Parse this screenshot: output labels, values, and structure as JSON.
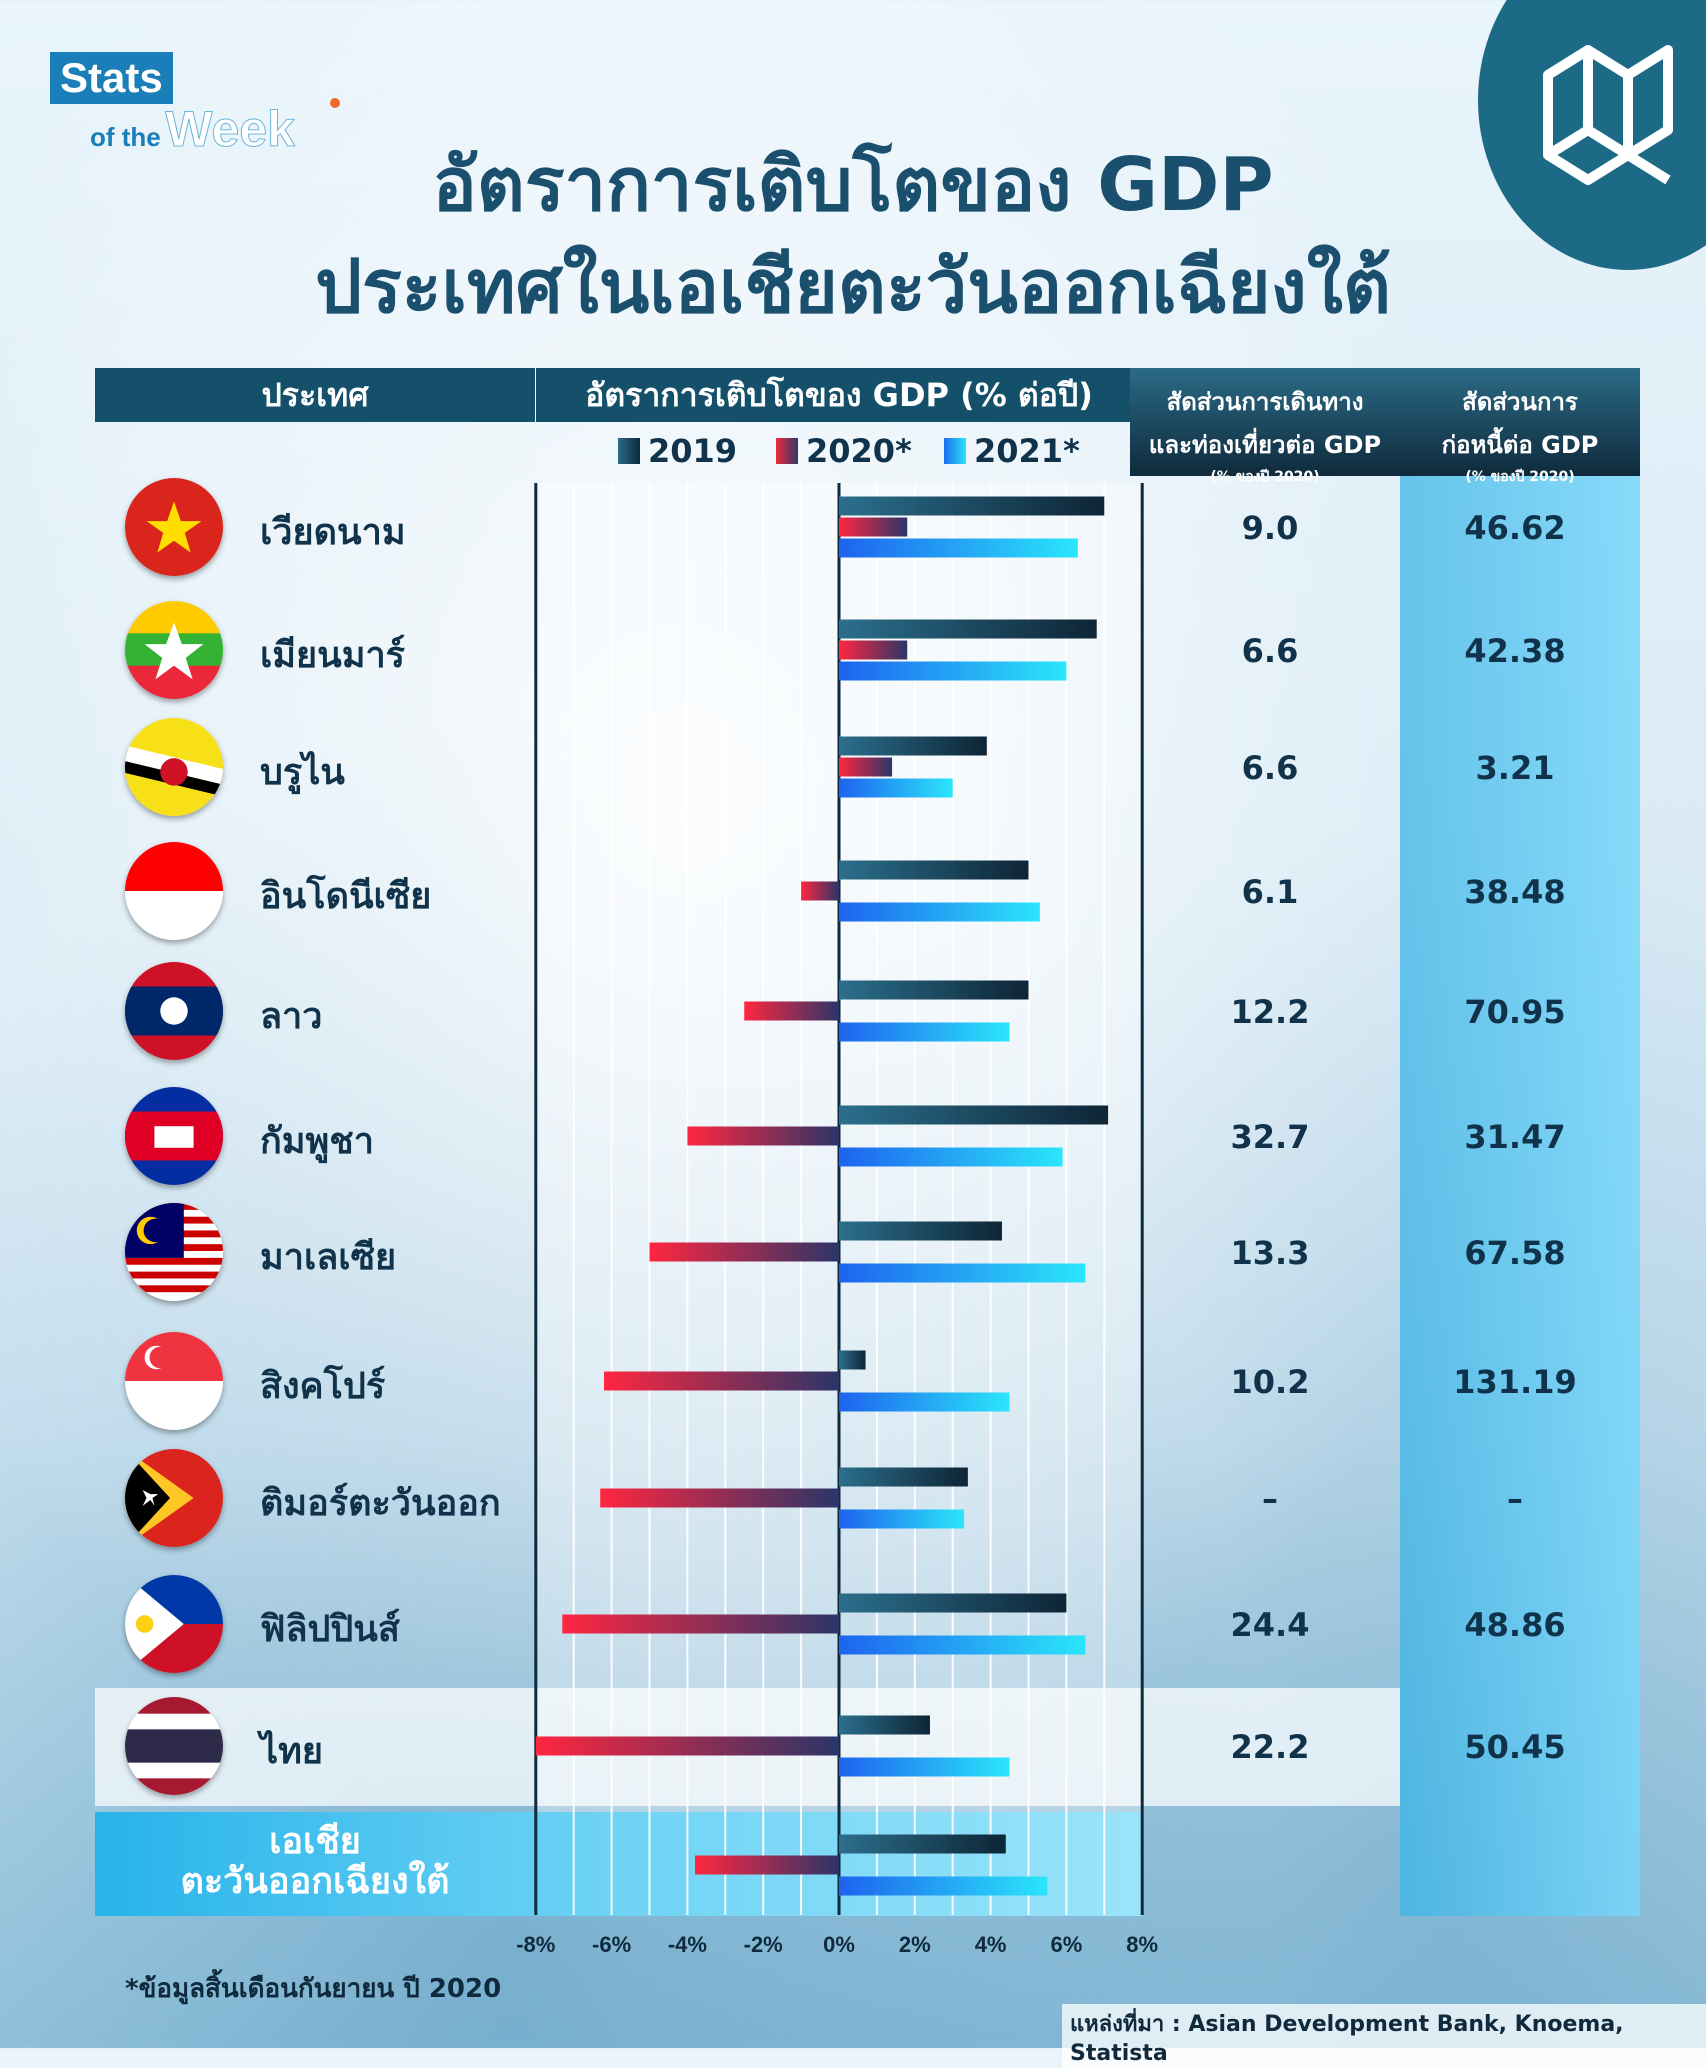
{
  "brand": {
    "stats": "Stats",
    "of_the": "of the",
    "week": "Week"
  },
  "title_line1": "อัตราการเติบโตของ GDP",
  "title_line2": "ประเทศในเอเชียตะวันออกเฉียงใต้",
  "headers": {
    "country": "ประเทศ",
    "gdp_growth": "อัตราการเติบโตของ GDP (% ต่อปี)",
    "tourism_line1": "สัดส่วนการเดินทาง",
    "tourism_line2": "และท่องเที่ยวต่อ GDP",
    "tourism_note": "(% ของปี 2020)",
    "debt_line1": "สัดส่วนการ",
    "debt_line2": "ก่อหนี้ต่อ GDP",
    "debt_note": "(% ของปี 2020)"
  },
  "colors": {
    "y2019": "#12354b",
    "y2020": "#ee2a3c",
    "y2021": "#12b8f0",
    "header": "#15506b"
  },
  "footnote": "*ข้อมูลสิ้นเดือนกันยายน ปี 2020",
  "source": "แหล่งที่มา : Asian Development Bank, Knoema, Statista",
  "asean_label_line1": "เอเชีย",
  "asean_label_line2": "ตะวันออกเฉียงใต้",
  "rows": [
    {
      "country": "เวียดนาม",
      "tourism": "9.0",
      "debt": "46.62",
      "flag": "vietnam"
    },
    {
      "country": "เมียนมาร์",
      "tourism": "6.6",
      "debt": "42.38",
      "flag": "myanmar"
    },
    {
      "country": "บรูไน",
      "tourism": "6.6",
      "debt": "3.21",
      "flag": "brunei"
    },
    {
      "country": "อินโดนีเซีย",
      "tourism": "6.1",
      "debt": "38.48",
      "flag": "indonesia"
    },
    {
      "country": "ลาว",
      "tourism": "12.2",
      "debt": "70.95",
      "flag": "laos"
    },
    {
      "country": "กัมพูชา",
      "tourism": "32.7",
      "debt": "31.47",
      "flag": "cambodia"
    },
    {
      "country": "มาเลเซีย",
      "tourism": "13.3",
      "debt": "67.58",
      "flag": "malaysia"
    },
    {
      "country": "สิงคโปร์",
      "tourism": "10.2",
      "debt": "131.19",
      "flag": "singapore"
    },
    {
      "country": "ติมอร์ตะวันออก",
      "tourism": "–",
      "debt": "–",
      "flag": "timor-leste"
    },
    {
      "country": "ฟิลิปปินส์",
      "tourism": "24.4",
      "debt": "48.86",
      "flag": "philippines"
    },
    {
      "country": "ไทย",
      "tourism": "22.2",
      "debt": "50.45",
      "flag": "thailand"
    }
  ],
  "chart_data": {
    "type": "bar",
    "orientation": "horizontal",
    "categories": [
      "เวียดนาม",
      "เมียนมาร์",
      "บรูไน",
      "อินโดนีเซีย",
      "ลาว",
      "กัมพูชา",
      "มาเลเซีย",
      "สิงคโปร์",
      "ติมอร์ตะวันออก",
      "ฟิลิปปินส์",
      "ไทย",
      "เอเชียตะวันออกเฉียงใต้"
    ],
    "series": [
      {
        "name": "2019",
        "values": [
          7.0,
          6.8,
          3.9,
          5.0,
          5.0,
          7.1,
          4.3,
          0.7,
          3.4,
          6.0,
          2.4,
          4.4
        ]
      },
      {
        "name": "2020*",
        "values": [
          1.8,
          1.8,
          1.4,
          -1.0,
          -2.5,
          -4.0,
          -5.0,
          -6.2,
          -6.3,
          -7.3,
          -8.0,
          -3.8
        ]
      },
      {
        "name": "2021*",
        "values": [
          6.3,
          6.0,
          3.0,
          5.3,
          4.5,
          5.9,
          6.5,
          4.5,
          3.3,
          6.5,
          4.5,
          5.5
        ]
      }
    ],
    "xlim": [
      -8,
      8
    ],
    "xticks": [
      "-8%",
      "-6%",
      "-4%",
      "-2%",
      "0%",
      "2%",
      "4%",
      "6%",
      "8%"
    ],
    "legend_position": "top",
    "title": "อัตราการเติบโตของ GDP (% ต่อปี)"
  }
}
